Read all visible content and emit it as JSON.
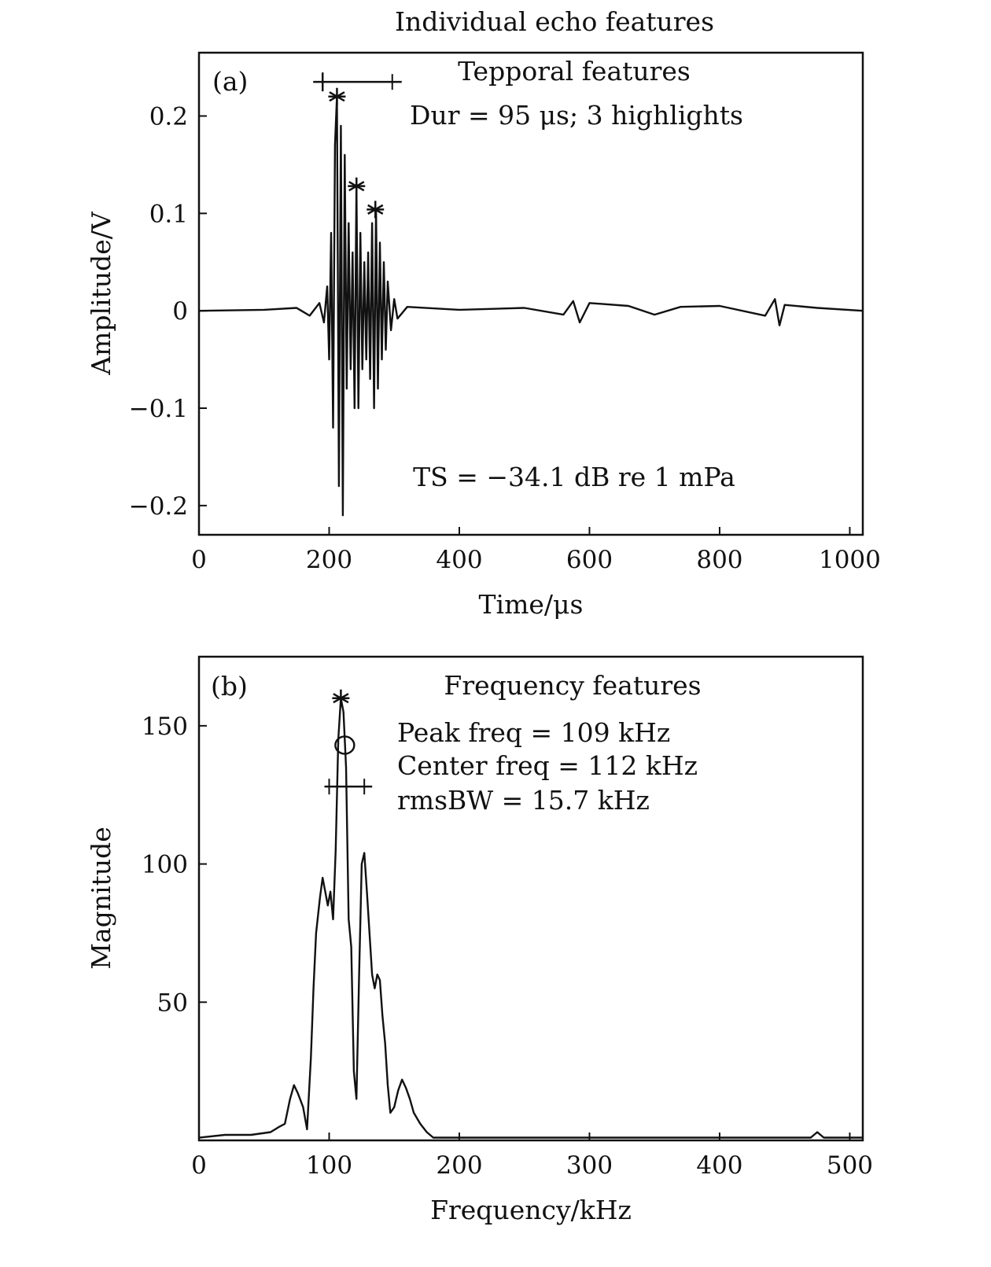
{
  "figure": {
    "title": "Individual echo features"
  },
  "chart_data": [
    {
      "type": "line",
      "panel_label": "(a)",
      "title": "Tepporal features",
      "xlabel": "Time/μs",
      "ylabel": "Amplitude/V",
      "xlim": [
        0,
        1020
      ],
      "ylim": [
        -0.23,
        0.265
      ],
      "xticks": [
        0,
        200,
        400,
        600,
        800,
        1000
      ],
      "xtick_labels": [
        "0",
        "200",
        "400",
        "600",
        "800",
        "1000"
      ],
      "yticks": [
        0.2,
        0.1,
        0,
        -0.1,
        -0.2
      ],
      "ytick_labels": [
        "0.2",
        "0.1",
        "0",
        "−0.1",
        "−0.2"
      ],
      "grid": false,
      "annotations": [
        "Dur = 95 μs; 3 highlights",
        "TS = −34.1 dB re 1 mPa"
      ],
      "duration_bar": {
        "x": [
          190,
          297
        ],
        "y": 0.235
      },
      "highlights": [
        {
          "x": 212,
          "y": 0.22
        },
        {
          "x": 242,
          "y": 0.128
        },
        {
          "x": 271,
          "y": 0.104
        }
      ],
      "series": [
        {
          "x": [
            0,
            100,
            150,
            170,
            185,
            192,
            197,
            200,
            203,
            206,
            209,
            212,
            215,
            218,
            221,
            224,
            227,
            230,
            233,
            236,
            239,
            242,
            245,
            248,
            251,
            254,
            257,
            260,
            263,
            266,
            269,
            272,
            275,
            278,
            281,
            284,
            287,
            290,
            295,
            300,
            305,
            320,
            400,
            500,
            560,
            575,
            585,
            600,
            660,
            700,
            740,
            800,
            870,
            885,
            892,
            900,
            950,
            1020
          ],
          "y": [
            0,
            0.001,
            0.003,
            -0.005,
            0.008,
            -0.012,
            0.025,
            -0.05,
            0.08,
            -0.12,
            0.17,
            0.22,
            -0.18,
            0.19,
            -0.21,
            0.16,
            -0.08,
            0.09,
            -0.06,
            0.06,
            -0.1,
            0.128,
            -0.1,
            0.08,
            -0.06,
            0.05,
            -0.05,
            0.06,
            -0.07,
            0.09,
            -0.1,
            0.104,
            -0.08,
            0.07,
            -0.05,
            0.05,
            -0.04,
            0.03,
            -0.02,
            0.012,
            -0.008,
            0.004,
            0.001,
            0.003,
            -0.004,
            0.01,
            -0.012,
            0.008,
            0.005,
            -0.004,
            0.004,
            0.005,
            -0.005,
            0.012,
            -0.015,
            0.006,
            0.003,
            0
          ]
        }
      ]
    },
    {
      "type": "line",
      "panel_label": "(b)",
      "title": "Frequency features",
      "xlabel": "Frequency/kHz",
      "ylabel": "Magnitude",
      "xlim": [
        0,
        510
      ],
      "ylim": [
        0,
        175
      ],
      "xticks": [
        0,
        100,
        200,
        300,
        400,
        500
      ],
      "xtick_labels": [
        "0",
        "100",
        "200",
        "300",
        "400",
        "500"
      ],
      "yticks": [
        150,
        100,
        50
      ],
      "ytick_labels": [
        "150",
        "100",
        "50"
      ],
      "grid": false,
      "annotations": [
        "Peak freq = 109 kHz",
        "Center freq = 112 kHz",
        "rmsBW = 15.7 kHz"
      ],
      "peak_marker": {
        "x": 109,
        "y": 160
      },
      "center_marker": {
        "x": 112,
        "y": 143
      },
      "bandwidth_bar": {
        "x": [
          100,
          127
        ],
        "y": 128
      },
      "series": [
        {
          "x": [
            0,
            20,
            40,
            55,
            62,
            66,
            70,
            73,
            76,
            80,
            83,
            86,
            88,
            90,
            93,
            95,
            97,
            99,
            101,
            103,
            105,
            107,
            109,
            111,
            113,
            115,
            117,
            119,
            121,
            123,
            125,
            127,
            129,
            131,
            133,
            135,
            137,
            139,
            141,
            143,
            145,
            147,
            150,
            153,
            156,
            159,
            162,
            165,
            170,
            175,
            180,
            190,
            200,
            250,
            300,
            400,
            470,
            475,
            480,
            510
          ],
          "y": [
            1,
            2,
            2,
            3,
            5,
            6,
            15,
            20,
            17,
            12,
            4,
            30,
            55,
            75,
            88,
            95,
            90,
            85,
            90,
            80,
            105,
            145,
            160,
            155,
            135,
            80,
            70,
            25,
            15,
            60,
            100,
            104,
            90,
            75,
            60,
            55,
            60,
            58,
            45,
            35,
            20,
            10,
            12,
            18,
            22,
            19,
            15,
            10,
            6,
            3,
            1,
            1,
            1,
            1,
            1,
            1,
            1,
            3,
            1,
            1
          ]
        }
      ]
    }
  ]
}
